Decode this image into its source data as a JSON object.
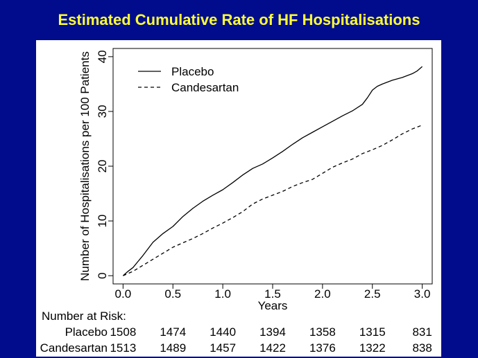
{
  "slide": {
    "title": "Estimated Cumulative Rate of HF Hospitalisations"
  },
  "chart_data": {
    "type": "line",
    "title": "Estimated Cumulative Rate of HF Hospitalisations",
    "xlabel": "Years",
    "ylabel": "Number of Hospitalisations per 100 Patients",
    "xlim": [
      -0.1,
      3.1
    ],
    "ylim": [
      -1.5,
      41.5
    ],
    "xticks": [
      "0.0",
      "0.5",
      "1.0",
      "1.5",
      "2.0",
      "2.5",
      "3.0"
    ],
    "yticks": [
      "0",
      "10",
      "20",
      "30",
      "40"
    ],
    "grid": false,
    "legend": "top-left",
    "series": [
      {
        "name": "Placebo",
        "style": "solid",
        "x": [
          0.0,
          0.05,
          0.1,
          0.15,
          0.2,
          0.25,
          0.3,
          0.4,
          0.5,
          0.6,
          0.7,
          0.8,
          0.9,
          1.0,
          1.1,
          1.2,
          1.3,
          1.4,
          1.5,
          1.6,
          1.7,
          1.8,
          1.9,
          2.0,
          2.1,
          2.2,
          2.3,
          2.4,
          2.45,
          2.5,
          2.55,
          2.6,
          2.7,
          2.8,
          2.9,
          2.95,
          3.0
        ],
        "values": [
          0,
          0.8,
          1.5,
          2.6,
          3.7,
          4.9,
          6.1,
          7.7,
          9.0,
          10.8,
          12.3,
          13.6,
          14.7,
          15.7,
          17.0,
          18.4,
          19.6,
          20.4,
          21.5,
          22.7,
          24.0,
          25.2,
          26.2,
          27.2,
          28.2,
          29.2,
          30.1,
          31.3,
          32.5,
          33.9,
          34.6,
          35.0,
          35.7,
          36.2,
          36.9,
          37.4,
          38.2
        ]
      },
      {
        "name": "Candesartan",
        "style": "dashed",
        "x": [
          0.0,
          0.1,
          0.2,
          0.3,
          0.4,
          0.5,
          0.6,
          0.7,
          0.8,
          0.9,
          1.0,
          1.1,
          1.2,
          1.3,
          1.4,
          1.5,
          1.6,
          1.7,
          1.8,
          1.9,
          2.0,
          2.1,
          2.2,
          2.3,
          2.4,
          2.5,
          2.6,
          2.7,
          2.8,
          2.9,
          3.0
        ],
        "values": [
          0,
          0.8,
          1.9,
          3.0,
          4.1,
          5.2,
          6.0,
          6.8,
          7.7,
          8.7,
          9.6,
          10.6,
          11.7,
          13.1,
          14.0,
          14.7,
          15.4,
          16.3,
          17.0,
          17.6,
          18.7,
          19.8,
          20.6,
          21.3,
          22.3,
          23.0,
          23.8,
          24.8,
          25.9,
          26.8,
          27.5
        ]
      }
    ],
    "risk_table": {
      "title": "Number at Risk:",
      "rows": [
        {
          "label": "Placebo",
          "values": [
            "1508",
            "1474",
            "1440",
            "1394",
            "1358",
            "1315",
            "831"
          ]
        },
        {
          "label": "Candesartan",
          "values": [
            "1513",
            "1489",
            "1457",
            "1422",
            "1376",
            "1322",
            "838"
          ]
        }
      ]
    }
  }
}
